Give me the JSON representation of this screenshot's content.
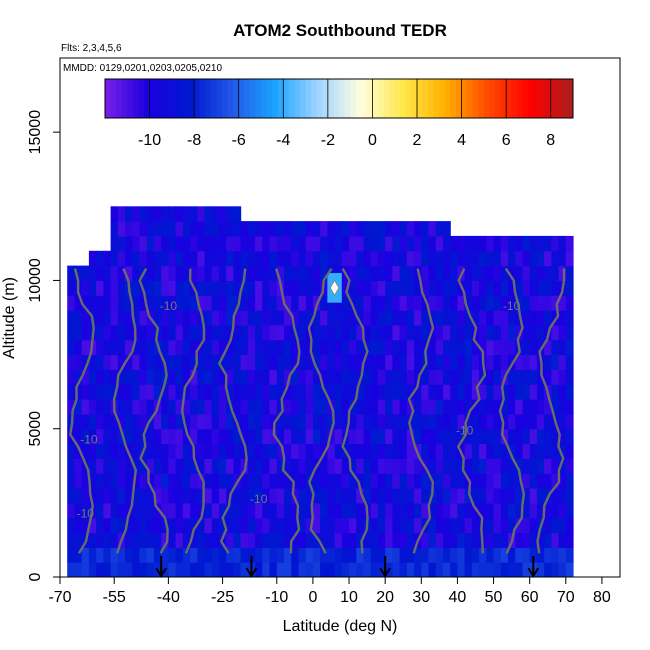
{
  "chart_data": {
    "type": "heatmap",
    "title": "ATOM2 Southbound TEDR",
    "annotations": [
      "Flts: 2,3,4,5,6",
      "MMDD: 0129,0201,0203,0205,0210"
    ],
    "xlabel": "Latitude (deg N)",
    "ylabel": "Altitude (m)",
    "xlim": [
      -70,
      85
    ],
    "ylim": [
      0,
      17500
    ],
    "x_ticks": [
      -70,
      -55,
      -40,
      -25,
      -10,
      0,
      10,
      20,
      30,
      40,
      50,
      60,
      70,
      80
    ],
    "x_tick_labels": [
      "-70",
      "-55",
      "-40",
      "-25",
      "-10",
      "0",
      "10",
      "20",
      "30",
      "40",
      "50",
      "60",
      "70",
      "80"
    ],
    "y_ticks": [
      0,
      5000,
      10000,
      15000
    ],
    "y_tick_labels": [
      "0",
      "5000",
      "10000",
      "15000"
    ],
    "colorbar": {
      "range": [
        -12,
        9
      ],
      "ticks": [
        -10,
        -8,
        -6,
        -4,
        -2,
        0,
        2,
        4,
        6,
        8
      ],
      "tick_labels": [
        "-10",
        "-8",
        "-6",
        "-4",
        "-2",
        "0",
        "2",
        "4",
        "6",
        "8"
      ],
      "colors": [
        "#7a1fe8",
        "#1a00e0",
        "#0018d0",
        "#2458e8",
        "#1aa4ff",
        "#9fd4ff",
        "#fffde0",
        "#ffe84a",
        "#ffb000",
        "#ff4a00",
        "#ff0000",
        "#a81e1e"
      ]
    },
    "data_extent": {
      "lat_min": -68,
      "lat_max": 72,
      "alt_max": 12500,
      "typical_value_range": [
        -11,
        -8
      ],
      "surface_layer_value": -7,
      "local_max": {
        "lat": 6,
        "alt": 9750,
        "value": -4
      }
    },
    "contour_level": -10,
    "contour_labels": [
      "-10",
      "-10",
      "-10",
      "-10",
      "-10",
      "-10"
    ],
    "arrow_markers_lat": [
      -42,
      -17,
      20,
      61
    ]
  }
}
